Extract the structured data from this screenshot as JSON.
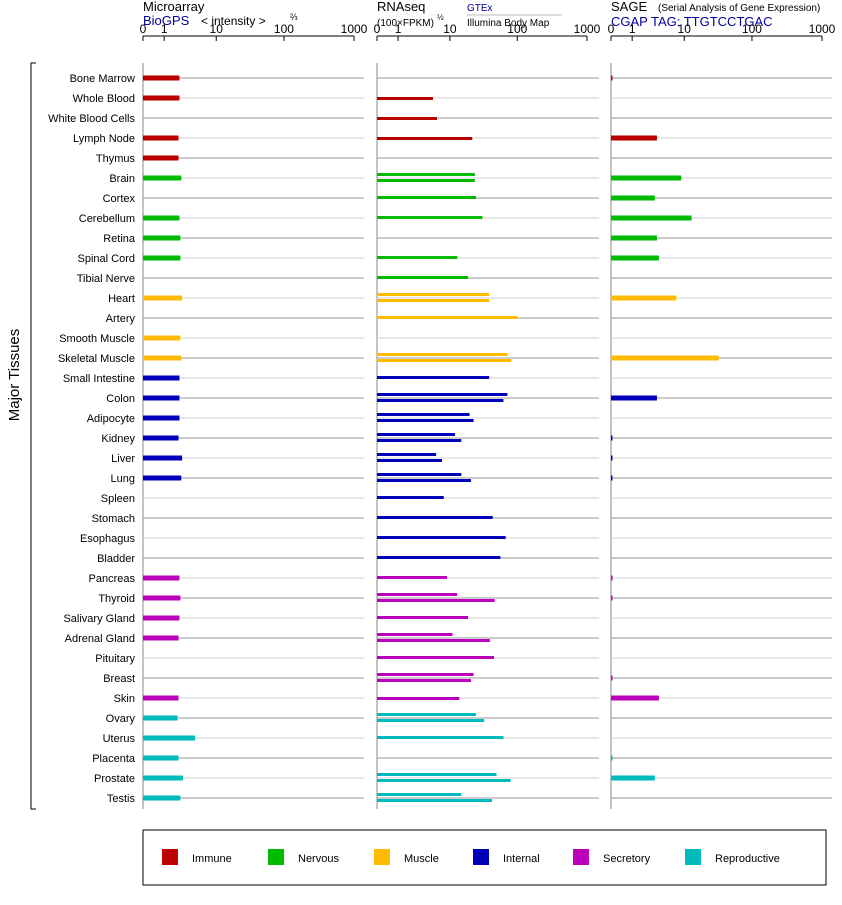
{
  "y_axis_label": "Major Tissues",
  "panels": [
    {
      "title": "Microarray",
      "source": "BioGPS",
      "metric": "< intensity >",
      "metric_exp": "⅔"
    },
    {
      "title": "RNAseq",
      "metric": "(100×FPKM)",
      "metric_exp": "½",
      "legend_1": "GTEx",
      "legend_2": "Illumina Body Map"
    },
    {
      "title": "SAGE",
      "subtitle": "(Serial Analysis of Gene Expression)",
      "tag": "CGAP TAG: TTGTCCTGAC"
    }
  ],
  "legend": [
    {
      "label": "Immune",
      "color": "#bb0000"
    },
    {
      "label": "Nervous",
      "color": "#00bb00"
    },
    {
      "label": "Muscle",
      "color": "#ffbb00"
    },
    {
      "label": "Internal",
      "color": "#0000bb"
    },
    {
      "label": "Secretory",
      "color": "#bb00bb"
    },
    {
      "label": "Reproductive",
      "color": "#00bbbb"
    }
  ],
  "chart_data": {
    "type": "bar",
    "orientation": "horizontal",
    "x_ticks": [
      "0",
      "1",
      "10",
      "100",
      "1000"
    ],
    "x_tick_values": [
      0,
      1,
      10,
      100,
      1000
    ],
    "xlim": [
      0,
      1000
    ],
    "categories": [
      "Bone Marrow",
      "Whole Blood",
      "White Blood Cells",
      "Lymph Node",
      "Thymus",
      "Brain",
      "Cortex",
      "Cerebellum",
      "Retina",
      "Spinal Cord",
      "Tibial Nerve",
      "Heart",
      "Artery",
      "Smooth Muscle",
      "Skeletal Muscle",
      "Small Intestine",
      "Colon",
      "Adipocyte",
      "Kidney",
      "Liver",
      "Lung",
      "Spleen",
      "Stomach",
      "Esophagus",
      "Bladder",
      "Pancreas",
      "Thyroid",
      "Salivary Gland",
      "Adrenal Gland",
      "Pituitary",
      "Breast",
      "Skin",
      "Ovary",
      "Uterus",
      "Placenta",
      "Prostate",
      "Testis"
    ],
    "groups": [
      "Immune",
      "Immune",
      "Immune",
      "Immune",
      "Immune",
      "Nervous",
      "Nervous",
      "Nervous",
      "Nervous",
      "Nervous",
      "Nervous",
      "Muscle",
      "Muscle",
      "Muscle",
      "Muscle",
      "Internal",
      "Internal",
      "Internal",
      "Internal",
      "Internal",
      "Internal",
      "Internal",
      "Internal",
      "Internal",
      "Internal",
      "Secretory",
      "Secretory",
      "Secretory",
      "Secretory",
      "Secretory",
      "Secretory",
      "Secretory",
      "Reproductive",
      "Reproductive",
      "Reproductive",
      "Reproductive",
      "Reproductive"
    ],
    "series": [
      {
        "name": "BioGPS",
        "values": [
          2.3,
          2.3,
          null,
          2.2,
          2.2,
          2.5,
          null,
          2.3,
          2.4,
          2.4,
          null,
          2.6,
          null,
          2.4,
          2.5,
          2.3,
          2.3,
          2.3,
          2.2,
          2.6,
          2.5,
          null,
          null,
          null,
          null,
          2.3,
          2.4,
          2.3,
          2.2,
          null,
          null,
          2.2,
          2.1,
          4.5,
          2.2,
          2.7,
          2.4
        ]
      },
      {
        "name": "GTEx",
        "values": [
          null,
          null,
          null,
          null,
          null,
          24,
          25,
          31,
          null,
          13,
          19,
          39,
          100,
          null,
          73,
          39,
          72,
          20,
          12,
          6,
          15,
          8,
          44,
          68,
          57,
          9,
          13,
          19,
          11,
          46,
          23,
          null,
          25,
          63,
          null,
          50,
          15
        ]
      },
      {
        "name": "Illumina Body Map",
        "values": [
          null,
          5.3,
          6.2,
          22,
          null,
          24,
          null,
          null,
          null,
          null,
          null,
          39,
          null,
          null,
          82,
          null,
          63,
          23,
          15,
          7.5,
          21,
          null,
          null,
          null,
          null,
          null,
          47,
          null,
          40,
          null,
          21,
          14,
          33,
          null,
          null,
          80,
          43
        ]
      },
      {
        "name": "SAGE",
        "values": [
          0.04,
          null,
          null,
          3.5,
          null,
          9,
          3.2,
          13,
          3.5,
          3.8,
          null,
          7.5,
          null,
          null,
          33,
          null,
          3.5,
          null,
          0.03,
          0.03,
          0.03,
          null,
          null,
          null,
          null,
          0.03,
          0.03,
          null,
          null,
          null,
          0.03,
          3.8,
          null,
          null,
          0.03,
          3.2,
          null
        ]
      }
    ]
  }
}
